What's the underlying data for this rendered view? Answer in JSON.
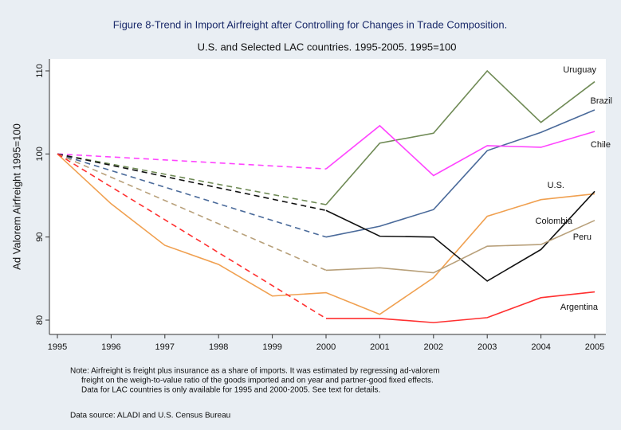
{
  "chart_data": {
    "type": "line",
    "title": "Figure 8-Trend in Import Airfreight after Controlling for Changes in Trade Composition.",
    "subtitle": "U.S. and Selected LAC countries. 1995-2005. 1995=100",
    "y_label": "Ad Valorem Airfreight 1995=100",
    "x": [
      1995,
      1996,
      1997,
      1998,
      1999,
      2000,
      2001,
      2002,
      2003,
      2004,
      2005
    ],
    "xlim": [
      1995,
      2005
    ],
    "xticks": [
      1995,
      1996,
      1997,
      1998,
      1999,
      2000,
      2001,
      2002,
      2003,
      2004,
      2005
    ],
    "ylim": [
      80,
      110
    ],
    "yticks": [
      80,
      90,
      100,
      110
    ],
    "dash_gaps": true,
    "series": [
      {
        "name": "Uruguay",
        "color": "#6f8a55",
        "values": [
          100,
          null,
          null,
          null,
          null,
          93.9,
          101.3,
          102.5,
          110,
          103.8,
          108.7
        ]
      },
      {
        "name": "Brazil",
        "color": "#4a6a9a",
        "values": [
          100,
          null,
          null,
          null,
          null,
          90.0,
          91.3,
          93.3,
          100.4,
          102.6,
          105.3
        ]
      },
      {
        "name": "Chile",
        "color": "#ff44ff",
        "values": [
          100,
          null,
          null,
          null,
          null,
          98.2,
          103.4,
          97.4,
          101.0,
          100.8,
          102.7
        ]
      },
      {
        "name": "U.S.",
        "color": "#f0a050",
        "values": [
          100,
          94.0,
          89.0,
          86.7,
          82.9,
          83.3,
          80.7,
          85.1,
          92.5,
          94.5,
          95.2
        ]
      },
      {
        "name": "Colombia",
        "color": "#111111",
        "values": [
          100,
          null,
          null,
          null,
          null,
          93.2,
          90.1,
          90.0,
          84.7,
          88.5,
          95.5
        ]
      },
      {
        "name": "Peru",
        "color": "#b8a07a",
        "values": [
          100,
          null,
          null,
          null,
          null,
          86.0,
          86.3,
          85.7,
          88.9,
          89.1,
          92.0
        ]
      },
      {
        "name": "Argentina",
        "color": "#ff3030",
        "values": [
          100,
          null,
          null,
          null,
          null,
          80.2,
          80.2,
          79.7,
          80.3,
          82.7,
          83.4
        ]
      }
    ],
    "notes": [
      "Note: Airfreight is freight plus insurance as a share of imports. It was estimated by regressing ad-valorem",
      "freight on the weigh-to-value ratio of the goods imported and on year and partner-good fixed effects.",
      "Data for LAC countries is only available for 1995 and 2000-2005. See text for details."
    ],
    "source": "Data source: ALADI and U.S. Census Bureau"
  }
}
